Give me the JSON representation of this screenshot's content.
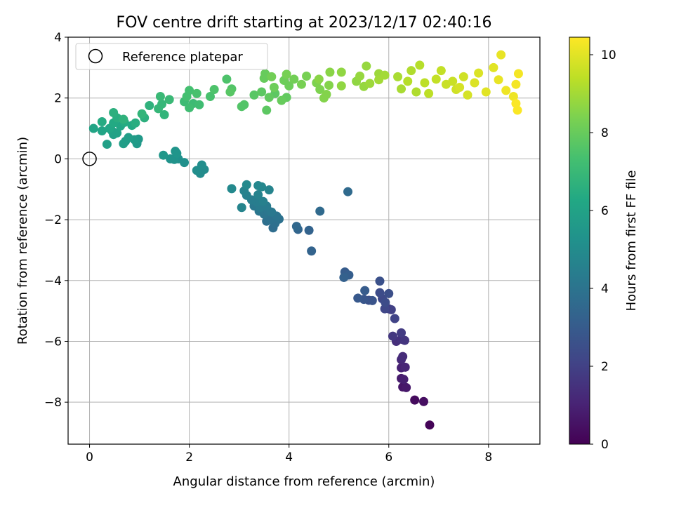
{
  "chart_data": {
    "type": "scatter",
    "title": "FOV centre drift starting at 2023/12/17 02:40:16",
    "xlabel": "Angular distance from reference (arcmin)",
    "ylabel": "Rotation from reference (arcmin)",
    "xlim": [
      -0.43,
      9.03
    ],
    "ylim": [
      -9.38,
      4.0
    ],
    "xticks": [
      0,
      2,
      4,
      6,
      8
    ],
    "yticks": [
      -8,
      -6,
      -4,
      -2,
      0,
      2,
      4
    ],
    "xticklabels": [
      "0",
      "2",
      "4",
      "6",
      "8"
    ],
    "yticklabels": [
      "−8",
      "−6",
      "−4",
      "−2",
      "0",
      "2",
      "4"
    ],
    "grid": true,
    "legend": {
      "position": "top-left",
      "entries": [
        "Reference platepar"
      ]
    },
    "reference_point": {
      "x": 0,
      "y": 0
    },
    "colorbar": {
      "label": "Hours from first FF file",
      "colormap": "viridis",
      "range": [
        0,
        10.45
      ],
      "ticks": [
        0,
        2,
        4,
        6,
        8,
        10
      ],
      "ticklabels": [
        "0",
        "2",
        "4",
        "6",
        "8",
        "10"
      ]
    },
    "series": [
      {
        "points": [
          [
            6.82,
            -8.75,
            0.1
          ],
          [
            6.52,
            -7.93,
            0.3
          ],
          [
            6.7,
            -7.98,
            0.4
          ],
          [
            6.28,
            -7.5,
            0.6
          ],
          [
            6.35,
            -7.52,
            0.7
          ],
          [
            6.25,
            -7.22,
            0.8
          ],
          [
            6.3,
            -7.25,
            0.9
          ],
          [
            6.25,
            -6.87,
            1.0
          ],
          [
            6.33,
            -6.85,
            1.1
          ],
          [
            6.25,
            -6.6,
            1.2
          ],
          [
            6.28,
            -6.5,
            1.3
          ],
          [
            6.15,
            -6.0,
            1.4
          ],
          [
            6.25,
            -5.93,
            1.5
          ],
          [
            6.32,
            -5.97,
            1.6
          ],
          [
            6.08,
            -5.83,
            1.7
          ],
          [
            6.25,
            -5.72,
            1.8
          ],
          [
            6.0,
            -4.93,
            1.9
          ],
          [
            6.05,
            -4.96,
            2.0
          ],
          [
            6.12,
            -5.25,
            2.1
          ],
          [
            5.92,
            -4.93,
            2.2
          ],
          [
            5.87,
            -4.6,
            2.3
          ],
          [
            5.82,
            -4.4,
            2.4
          ],
          [
            5.93,
            -4.72,
            2.4
          ],
          [
            6.0,
            -4.43,
            2.5
          ],
          [
            5.82,
            -4.02,
            2.6
          ],
          [
            5.6,
            -4.65,
            2.6
          ],
          [
            5.67,
            -4.66,
            2.7
          ],
          [
            5.5,
            -4.62,
            2.8
          ],
          [
            5.38,
            -4.58,
            2.9
          ],
          [
            5.52,
            -4.33,
            3.0
          ],
          [
            5.12,
            -3.72,
            3.0
          ],
          [
            5.2,
            -3.82,
            3.1
          ],
          [
            5.1,
            -3.9,
            3.2
          ],
          [
            4.45,
            -3.03,
            3.3
          ],
          [
            4.4,
            -2.35,
            3.3
          ],
          [
            4.18,
            -2.32,
            3.4
          ],
          [
            4.15,
            -2.22,
            3.5
          ],
          [
            4.62,
            -1.72,
            3.6
          ],
          [
            5.18,
            -1.08,
            3.6
          ],
          [
            3.68,
            -2.27,
            3.7
          ],
          [
            3.72,
            -2.12,
            3.8
          ],
          [
            3.55,
            -2.05,
            3.8
          ],
          [
            3.62,
            -2.0,
            3.9
          ],
          [
            3.8,
            -1.98,
            3.9
          ],
          [
            3.75,
            -1.88,
            4.0
          ],
          [
            3.5,
            -1.82,
            4.0
          ],
          [
            3.58,
            -1.7,
            4.1
          ],
          [
            3.4,
            -1.72,
            4.1
          ],
          [
            3.65,
            -1.75,
            4.2
          ],
          [
            3.3,
            -1.55,
            4.2
          ],
          [
            3.42,
            -1.6,
            4.3
          ],
          [
            3.55,
            -1.55,
            4.3
          ],
          [
            3.35,
            -1.42,
            4.4
          ],
          [
            3.25,
            -1.35,
            4.4
          ],
          [
            3.48,
            -1.4,
            4.5
          ],
          [
            3.15,
            -1.2,
            4.5
          ],
          [
            3.38,
            -1.18,
            4.6
          ],
          [
            3.1,
            -1.05,
            4.6
          ],
          [
            3.6,
            -1.02,
            4.7
          ],
          [
            3.05,
            -1.6,
            4.7
          ],
          [
            3.45,
            -0.92,
            4.8
          ],
          [
            3.38,
            -0.88,
            4.8
          ],
          [
            3.15,
            -0.85,
            4.9
          ],
          [
            2.85,
            -0.98,
            4.9
          ],
          [
            2.3,
            -0.35,
            5.0
          ],
          [
            2.22,
            -0.48,
            5.0
          ],
          [
            2.15,
            -0.38,
            5.1
          ],
          [
            2.25,
            -0.2,
            5.1
          ],
          [
            1.9,
            -0.12,
            5.2
          ],
          [
            1.78,
            0.0,
            5.2
          ],
          [
            1.7,
            -0.02,
            5.3
          ],
          [
            1.62,
            0.0,
            5.3
          ],
          [
            1.75,
            0.18,
            5.4
          ],
          [
            1.72,
            0.25,
            5.4
          ],
          [
            1.48,
            0.12,
            5.5
          ],
          [
            0.95,
            0.5,
            5.6
          ],
          [
            0.98,
            0.65,
            5.6
          ],
          [
            0.9,
            0.63,
            5.7
          ],
          [
            0.72,
            0.58,
            5.7
          ],
          [
            0.68,
            0.5,
            5.8
          ],
          [
            0.78,
            0.7,
            5.8
          ],
          [
            0.35,
            0.48,
            5.9
          ],
          [
            0.48,
            0.8,
            5.9
          ],
          [
            0.55,
            0.85,
            6.0
          ],
          [
            0.45,
            0.92,
            6.0
          ],
          [
            0.25,
            0.92,
            6.1
          ],
          [
            0.08,
            1.0,
            6.1
          ],
          [
            0.4,
            1.0,
            6.2
          ],
          [
            0.62,
            1.08,
            6.2
          ],
          [
            0.85,
            1.1,
            6.3
          ],
          [
            0.48,
            1.18,
            6.3
          ],
          [
            0.7,
            1.2,
            6.4
          ],
          [
            0.25,
            1.22,
            6.4
          ],
          [
            0.55,
            1.35,
            6.5
          ],
          [
            0.92,
            1.18,
            6.5
          ],
          [
            1.1,
            1.35,
            6.6
          ],
          [
            0.48,
            1.52,
            6.6
          ],
          [
            0.68,
            1.3,
            6.7
          ],
          [
            1.2,
            1.75,
            6.7
          ],
          [
            1.05,
            1.48,
            6.8
          ],
          [
            1.5,
            1.45,
            6.8
          ],
          [
            1.38,
            1.65,
            6.9
          ],
          [
            1.45,
            1.8,
            6.9
          ],
          [
            1.6,
            1.95,
            7.0
          ],
          [
            1.42,
            2.05,
            7.0
          ],
          [
            1.9,
            1.88,
            7.1
          ],
          [
            2.08,
            1.82,
            7.1
          ],
          [
            2.2,
            1.78,
            7.2
          ],
          [
            2.0,
            1.68,
            7.2
          ],
          [
            1.95,
            2.05,
            7.3
          ],
          [
            2.0,
            2.25,
            7.3
          ],
          [
            2.15,
            2.15,
            7.4
          ],
          [
            2.42,
            2.05,
            7.4
          ],
          [
            2.5,
            2.28,
            7.5
          ],
          [
            2.75,
            2.62,
            7.5
          ],
          [
            2.85,
            2.3,
            7.6
          ],
          [
            3.05,
            1.72,
            7.6
          ],
          [
            3.1,
            1.78,
            7.6
          ],
          [
            2.82,
            2.2,
            7.7
          ],
          [
            3.3,
            2.1,
            7.7
          ],
          [
            3.45,
            2.2,
            7.8
          ],
          [
            3.55,
            1.6,
            7.8
          ],
          [
            3.72,
            2.15,
            7.8
          ],
          [
            3.6,
            2.02,
            7.9
          ],
          [
            3.95,
            2.02,
            7.9
          ],
          [
            3.85,
            1.92,
            8.0
          ],
          [
            3.5,
            2.65,
            8.0
          ],
          [
            3.52,
            2.8,
            8.0
          ],
          [
            3.7,
            2.35,
            8.1
          ],
          [
            4.0,
            2.4,
            8.1
          ],
          [
            3.9,
            2.58,
            8.1
          ],
          [
            3.65,
            2.7,
            8.2
          ],
          [
            4.1,
            2.62,
            8.2
          ],
          [
            4.25,
            2.45,
            8.3
          ],
          [
            4.35,
            2.72,
            8.3
          ],
          [
            3.95,
            2.78,
            8.3
          ],
          [
            4.55,
            2.5,
            8.4
          ],
          [
            4.62,
            2.28,
            8.4
          ],
          [
            4.7,
            2.0,
            8.5
          ],
          [
            4.75,
            2.12,
            8.5
          ],
          [
            4.8,
            2.42,
            8.5
          ],
          [
            4.6,
            2.62,
            8.6
          ],
          [
            4.82,
            2.85,
            8.6
          ],
          [
            5.05,
            2.4,
            8.7
          ],
          [
            5.05,
            2.85,
            8.7
          ],
          [
            5.35,
            2.55,
            8.7
          ],
          [
            5.42,
            2.72,
            8.8
          ],
          [
            5.55,
            3.05,
            8.8
          ],
          [
            5.5,
            2.38,
            8.8
          ],
          [
            5.62,
            2.48,
            8.9
          ],
          [
            5.8,
            2.8,
            8.9
          ],
          [
            5.92,
            2.75,
            9.0
          ],
          [
            5.8,
            2.6,
            9.0
          ],
          [
            6.18,
            2.7,
            9.1
          ],
          [
            6.25,
            2.3,
            9.1
          ],
          [
            6.45,
            2.9,
            9.2
          ],
          [
            6.55,
            2.2,
            9.2
          ],
          [
            6.38,
            2.55,
            9.3
          ],
          [
            6.62,
            3.08,
            9.3
          ],
          [
            6.72,
            2.5,
            9.4
          ],
          [
            6.8,
            2.15,
            9.4
          ],
          [
            6.95,
            2.62,
            9.5
          ],
          [
            7.05,
            2.9,
            9.5
          ],
          [
            7.15,
            2.45,
            9.6
          ],
          [
            7.28,
            2.55,
            9.6
          ],
          [
            7.35,
            2.28,
            9.7
          ],
          [
            7.5,
            2.7,
            9.7
          ],
          [
            7.42,
            2.35,
            9.8
          ],
          [
            7.58,
            2.1,
            9.8
          ],
          [
            7.72,
            2.5,
            9.9
          ],
          [
            7.8,
            2.82,
            9.9
          ],
          [
            7.95,
            2.2,
            10.0
          ],
          [
            8.1,
            3.0,
            10.0
          ],
          [
            8.25,
            3.42,
            10.1
          ],
          [
            8.2,
            2.6,
            10.1
          ],
          [
            8.35,
            2.25,
            10.2
          ],
          [
            8.5,
            2.05,
            10.2
          ],
          [
            8.55,
            2.45,
            10.3
          ],
          [
            8.6,
            2.8,
            10.3
          ],
          [
            8.58,
            1.6,
            10.4
          ],
          [
            8.55,
            1.82,
            10.4
          ]
        ]
      }
    ]
  }
}
